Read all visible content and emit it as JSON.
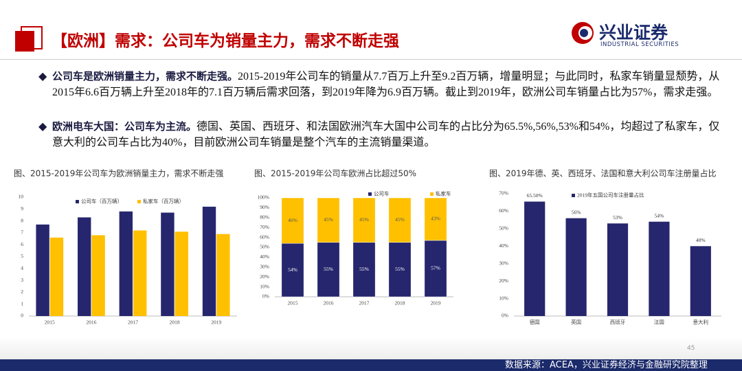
{
  "header": {
    "title": "【欧洲】需求：公司车为销量主力，需求不断走强",
    "logo_cn": "兴业证券",
    "logo_en": "INDUSTRIAL SECURITIES"
  },
  "bullets": [
    {
      "bold": "公司车是欧洲销量主力，需求不断走强。",
      "text": "2015-2019年公司车的销量从7.7百万上升至9.2百万辆，增量明显；与此同时，私家车销量显颓势，从2015年6.6百万辆上升至2018年的7.1百万辆后需求回落，到2019年降为6.9百万辆。截止到2019年，欧洲公司车销量占比为57%，需求走强。"
    },
    {
      "bold": "欧洲电车大国：公司车为主流。",
      "text": "德国、英国、西班牙、和法国欧洲汽车大国中公司车的占比分为65.5%,56%,53%和54%，均超过了私家车，仅意大利的公司车占比为40%，目前欧洲公司车销量是整个汽车的主流销量渠道。"
    }
  ],
  "chart_data": [
    {
      "type": "grouped_bar",
      "title": "图、2015-2019年公司车为欧洲销量主力，需求不断走强",
      "categories": [
        "2015",
        "2016",
        "2017",
        "2018",
        "2019"
      ],
      "series": [
        {
          "name": "公司车（百万辆）",
          "color": "#26266e",
          "values": [
            7.7,
            8.3,
            8.8,
            8.7,
            9.2
          ]
        },
        {
          "name": "私家车（百万辆）",
          "color": "#ffc000",
          "values": [
            6.6,
            6.8,
            7.2,
            7.1,
            6.9
          ]
        }
      ],
      "ylim": [
        0,
        10
      ],
      "yticks": [
        0,
        1,
        2,
        3,
        4,
        5,
        6,
        7,
        8,
        9,
        10
      ],
      "grid": false
    },
    {
      "type": "stacked_bar",
      "title": "图、2015-2019年公司车欧洲占比超过50%",
      "categories": [
        "2015",
        "2016",
        "2017",
        "2018",
        "2019"
      ],
      "series": [
        {
          "name": "公司车",
          "color": "#26266e",
          "values": [
            54,
            55,
            55,
            55,
            57
          ],
          "value_labels": [
            "54%",
            "55%",
            "55%",
            "55%",
            "57%"
          ]
        },
        {
          "name": "私家车",
          "color": "#ffc000",
          "values": [
            46,
            45,
            45,
            45,
            43
          ],
          "value_labels": [
            "46%",
            "45%",
            "45%",
            "45%",
            "43%"
          ]
        }
      ],
      "ylim": [
        0,
        100
      ],
      "yticks": [
        {
          "value": 0,
          "label": "0%"
        },
        {
          "value": 10,
          "label": "10%"
        },
        {
          "value": 20,
          "label": "20%"
        },
        {
          "value": 30,
          "label": "30%"
        },
        {
          "value": 40,
          "label": "40%"
        },
        {
          "value": 50,
          "label": "50%"
        },
        {
          "value": 60,
          "label": "60%"
        },
        {
          "value": 70,
          "label": "70%"
        },
        {
          "value": 80,
          "label": "80%"
        },
        {
          "value": 90,
          "label": "90%"
        },
        {
          "value": 100,
          "label": "100%"
        }
      ],
      "grid": false
    },
    {
      "type": "bar",
      "title": "图、2019年德、英、西班牙、法国和意大利公司车注册量占比",
      "categories": [
        "德国",
        "英国",
        "西班牙",
        "法国",
        "意大利"
      ],
      "series": [
        {
          "name": "2019年五国公司车注册量占比",
          "color": "#26266e",
          "values": [
            65.5,
            56,
            53,
            54,
            40
          ],
          "value_labels": [
            "65.50%",
            "56%",
            "53%",
            "54%",
            "40%"
          ]
        }
      ],
      "ylim": [
        0,
        70
      ],
      "yticks": [
        {
          "value": 0,
          "label": "0%"
        },
        {
          "value": 10,
          "label": "10%"
        },
        {
          "value": 20,
          "label": "20%"
        },
        {
          "value": 30,
          "label": "30%"
        },
        {
          "value": 40,
          "label": "40%"
        },
        {
          "value": 50,
          "label": "50%"
        },
        {
          "value": 60,
          "label": "60%"
        },
        {
          "value": 70,
          "label": "70%"
        }
      ],
      "grid": false
    }
  ],
  "source": "数据来源：ACEA，兴业证券经济与金融研究院整理",
  "page_number": "45"
}
